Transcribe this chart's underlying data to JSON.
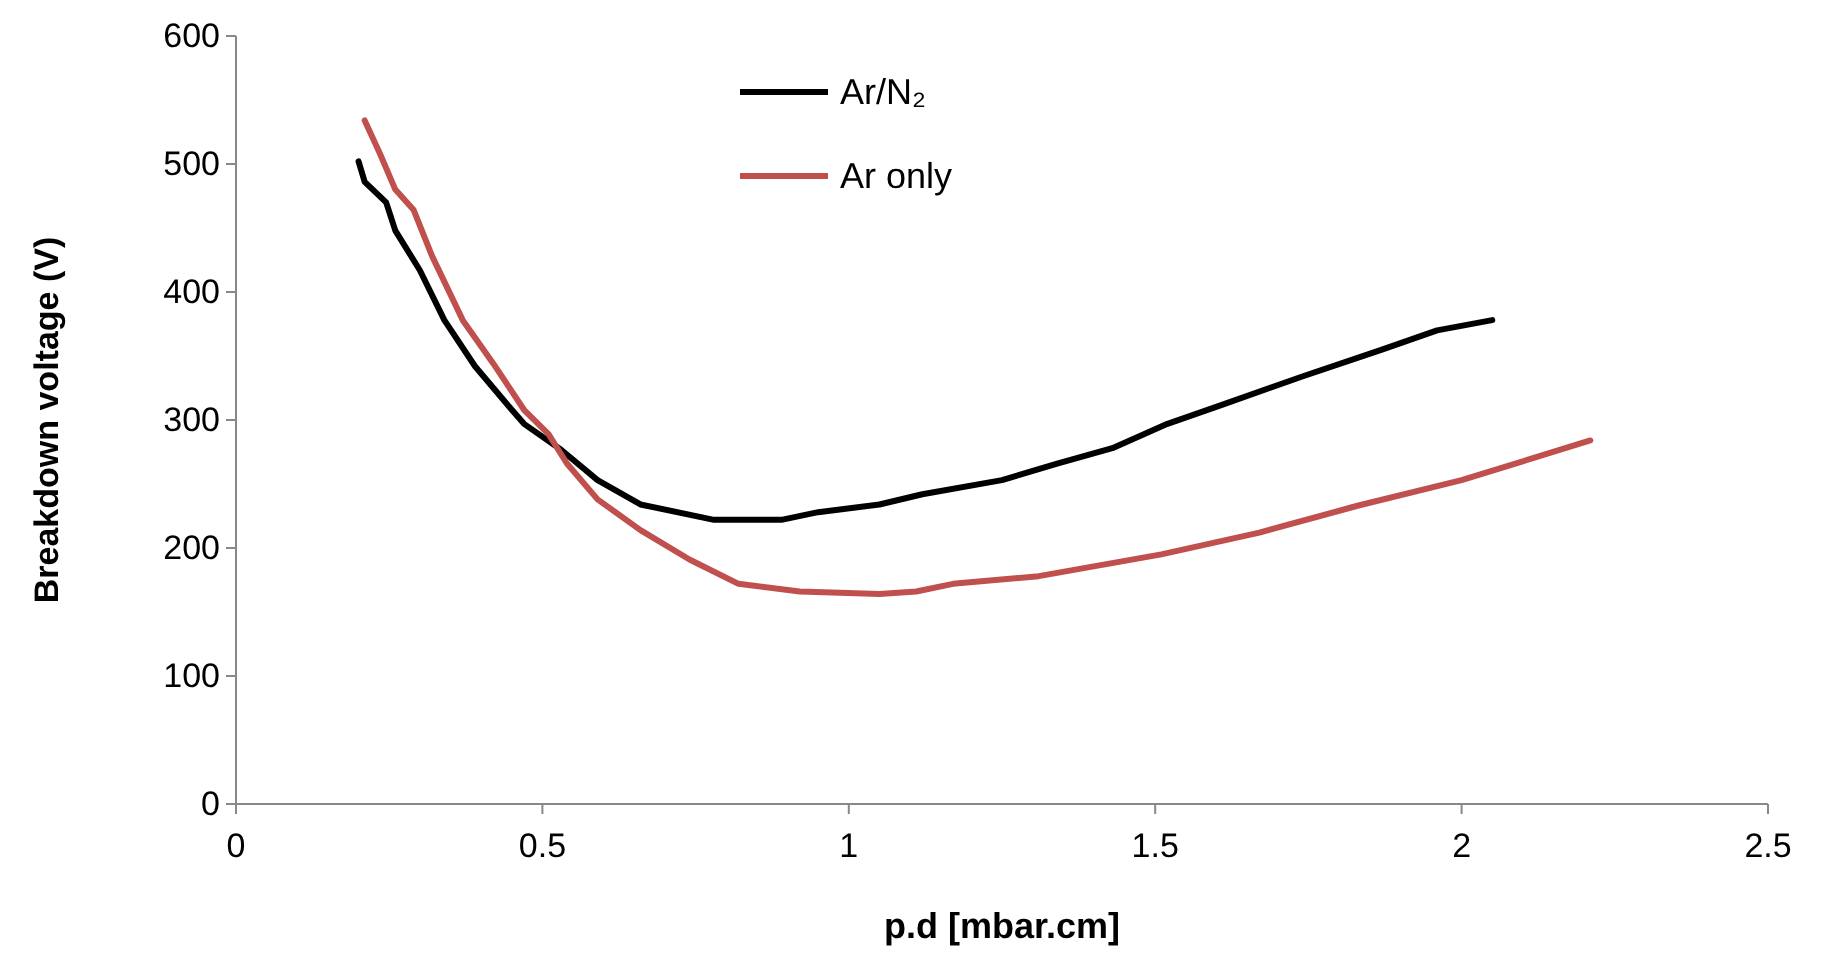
{
  "chart_data": {
    "type": "line",
    "xlabel": "p.d [mbar.cm]",
    "ylabel": "Breakdown voltage (V)",
    "xlim": [
      0,
      2.5
    ],
    "xticks": [
      0,
      0.5,
      1,
      1.5,
      2,
      2.5
    ],
    "ylim": [
      0,
      600
    ],
    "yticks": [
      0,
      100,
      200,
      300,
      400,
      500,
      600
    ],
    "legend": "top",
    "grid": false,
    "marker": "none",
    "series": [
      {
        "name": "Ar/N₂",
        "color": "#000000",
        "x": [
          0.2,
          0.21,
          0.245,
          0.26,
          0.3,
          0.34,
          0.39,
          0.45,
          0.47,
          0.53,
          0.59,
          0.66,
          0.78,
          0.89,
          0.95,
          1.05,
          1.12,
          1.25,
          1.34,
          1.43,
          1.52,
          1.61,
          1.74,
          1.87,
          1.96,
          2.05
        ],
        "values": [
          502,
          486,
          470,
          448,
          417,
          378,
          342,
          308,
          297,
          277,
          253,
          234,
          222,
          222,
          228,
          234,
          242,
          253,
          266,
          278,
          297,
          312,
          334,
          355,
          370,
          378
        ]
      },
      {
        "name": "Ar only",
        "color": "#c0504d",
        "x": [
          0.21,
          0.235,
          0.26,
          0.29,
          0.32,
          0.37,
          0.42,
          0.47,
          0.51,
          0.54,
          0.59,
          0.66,
          0.74,
          0.82,
          0.92,
          1.05,
          1.11,
          1.17,
          1.31,
          1.51,
          1.67,
          1.83,
          2.0,
          2.21
        ],
        "values": [
          534,
          508,
          480,
          464,
          428,
          378,
          344,
          308,
          289,
          266,
          238,
          214,
          191,
          172,
          166,
          164,
          166,
          172,
          178,
          195,
          212,
          233,
          253,
          284
        ]
      }
    ]
  }
}
